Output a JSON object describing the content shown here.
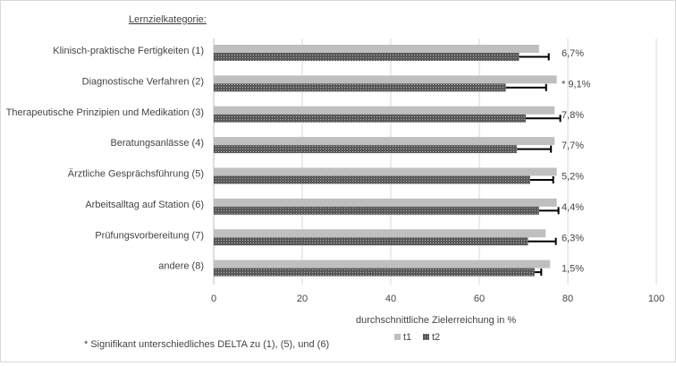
{
  "chart_data": {
    "type": "bar",
    "orientation": "horizontal",
    "heading": "Lernzielkategorie:",
    "categories": [
      "Klinisch-praktische Fertigkeiten (1)",
      "Diagnostische Verfahren (2)",
      "Therapeutische Prinzipien und Medikation (3)",
      "Beratungsanlässe (4)",
      "Ärztliche Gesprächsführung (5)",
      "Arbeitsalltag auf Station (6)",
      "Prüfungsvorbereitung (7)",
      "andere (8)"
    ],
    "series": [
      {
        "name": "t1",
        "values": [
          73.5,
          77.5,
          77,
          77,
          77.5,
          77.5,
          75,
          76
        ],
        "color": "#bfbfbf"
      },
      {
        "name": "t2",
        "values": [
          69,
          66,
          70.5,
          68.5,
          71.5,
          73.5,
          71,
          72.5
        ],
        "color": "#595959",
        "error": [
          6.7,
          9.1,
          7.8,
          7.7,
          5.2,
          4.4,
          6.3,
          1.5
        ]
      }
    ],
    "delta_labels": [
      "6,7%",
      "* 9,1%",
      "7,8%",
      "7,7%",
      "5,2%",
      "4,4%",
      "6,3%",
      "1,5%"
    ],
    "xlabel": "durchschnittliche Zielerreichung in %",
    "xlim": [
      0,
      100
    ],
    "xticks": [
      0,
      20,
      40,
      60,
      80,
      100
    ],
    "grid": "vertical",
    "legend": "bottom-right",
    "footnote": "* Signifikant unterschiedliches DELTA zu (1), (5), und (6)"
  }
}
